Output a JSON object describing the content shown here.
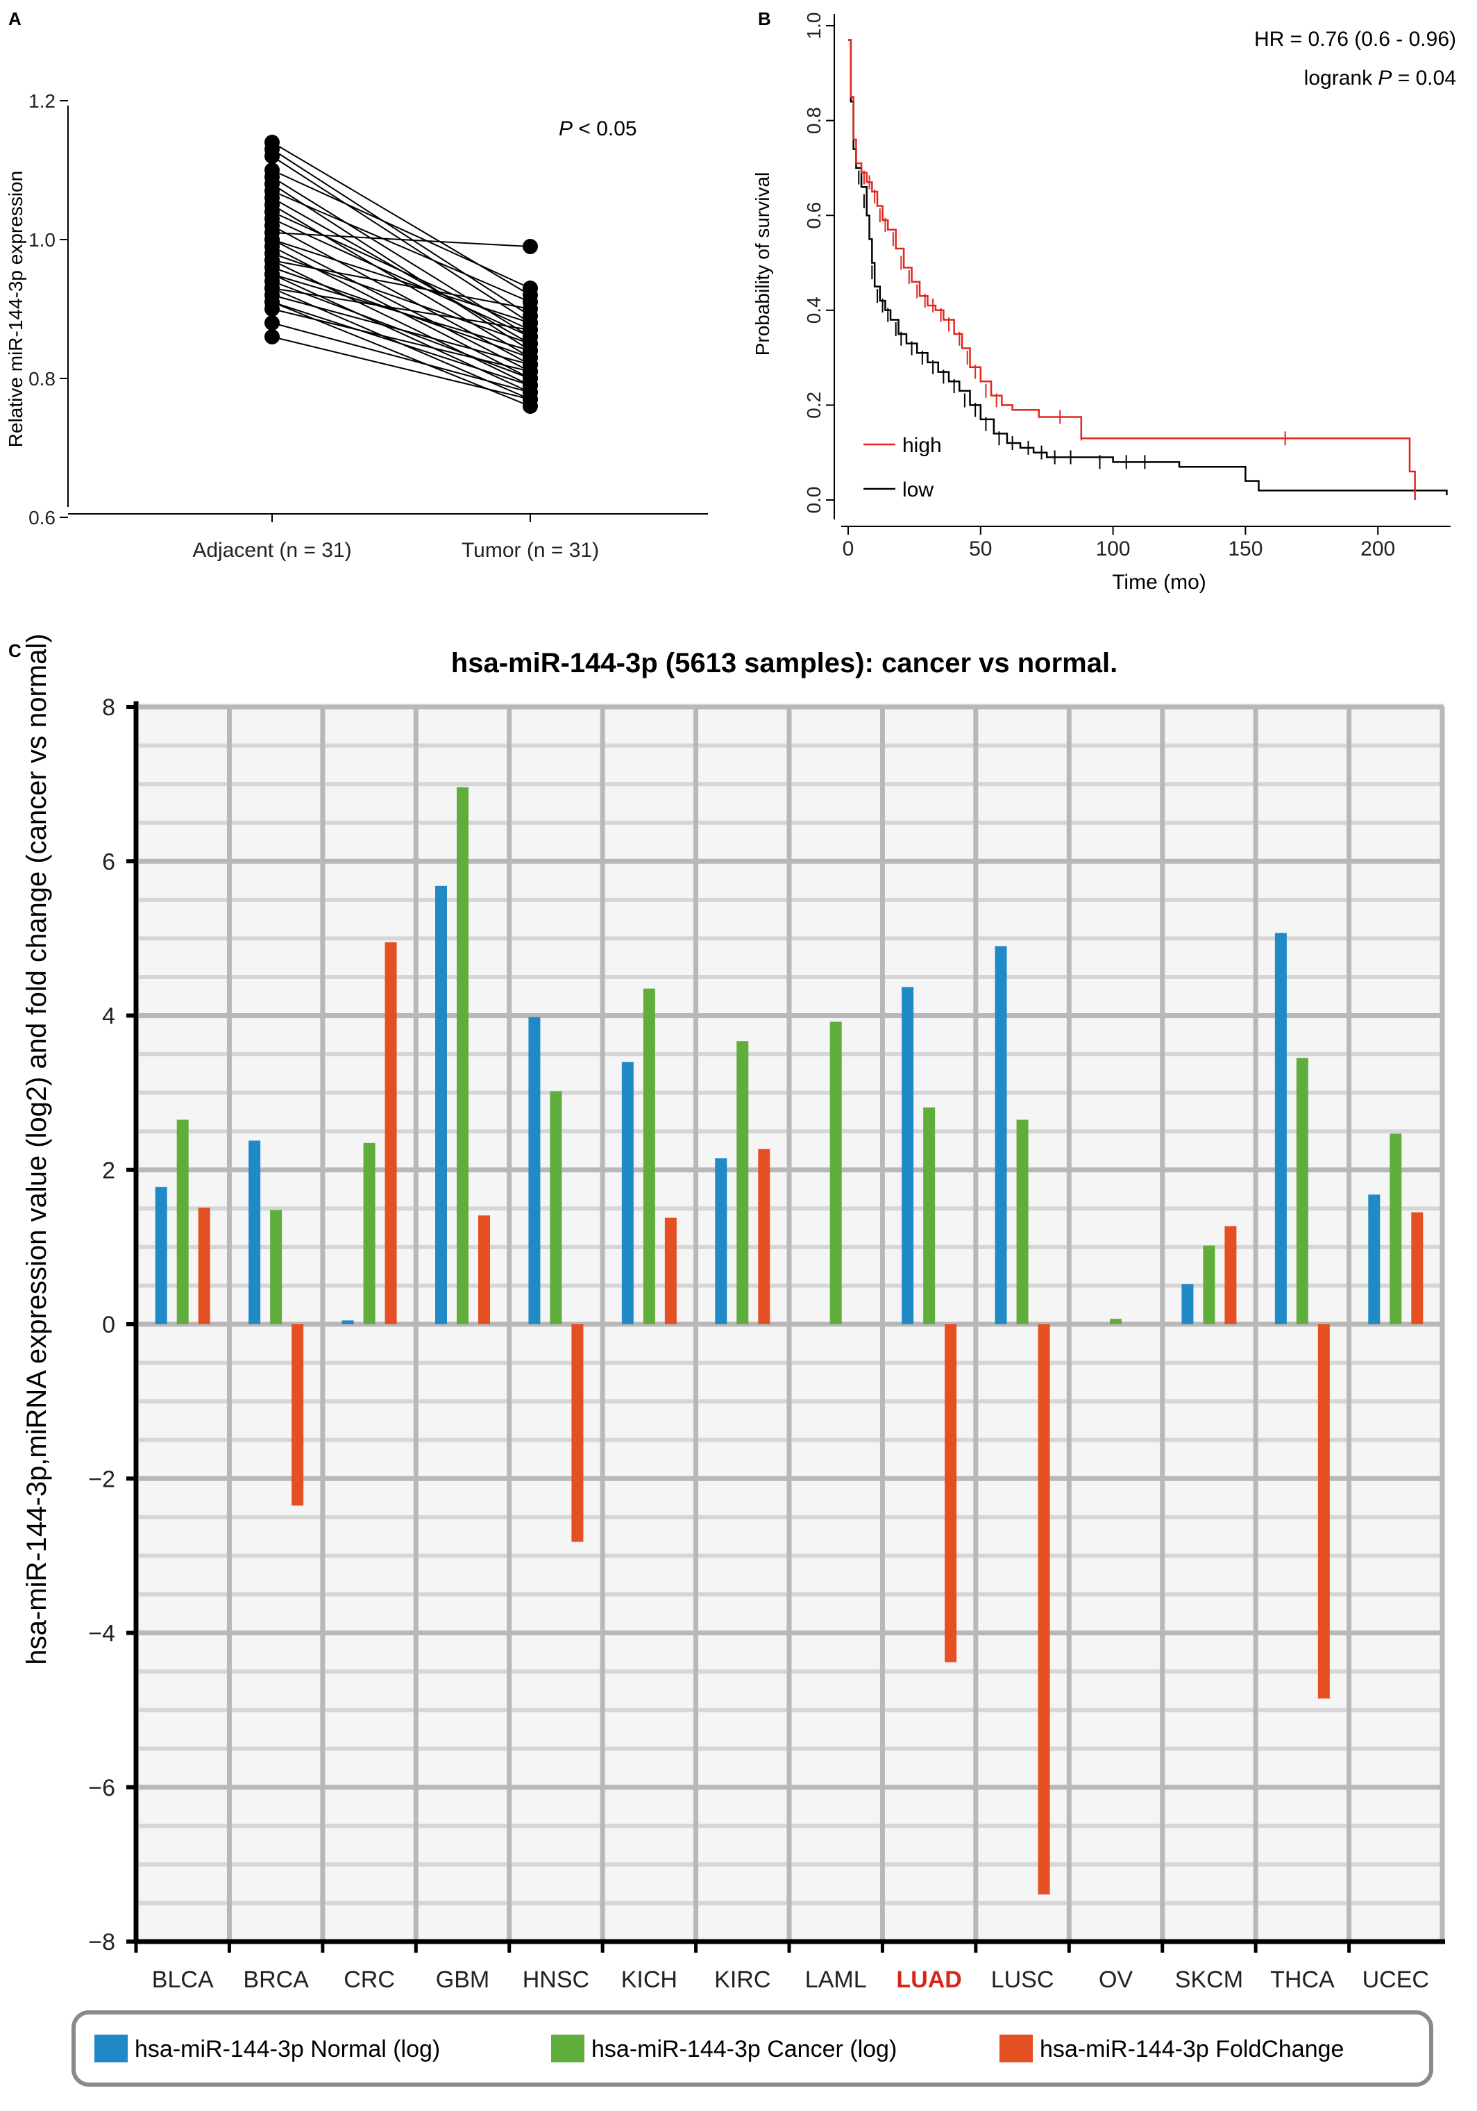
{
  "panel_labels": {
    "a": "A",
    "b": "B",
    "c": "C"
  },
  "colors": {
    "normal": "#1f8ac5",
    "cancer": "#5fae3b",
    "foldchange": "#e55022",
    "high": "#e2261c",
    "low": "#000000",
    "highlight_category": "#d9261c"
  },
  "chart_data": [
    {
      "type": "paired-dot",
      "ylabel": "Relative miR-144-3p expression",
      "ylim": [
        0.6,
        1.2
      ],
      "yticks": [
        "0.6",
        "0.8",
        "1.0",
        "1.2"
      ],
      "categories": [
        "Adjacent (n = 31)",
        "Tumor (n = 31)"
      ],
      "annotation": {
        "italic": "P",
        "text": " < 0.05"
      },
      "pairs": [
        [
          1.14,
          0.92
        ],
        [
          1.13,
          0.89
        ],
        [
          1.12,
          0.88
        ],
        [
          1.1,
          0.93
        ],
        [
          1.09,
          0.86
        ],
        [
          1.08,
          0.84
        ],
        [
          1.07,
          0.91
        ],
        [
          1.06,
          0.85
        ],
        [
          1.05,
          0.83
        ],
        [
          1.04,
          0.87
        ],
        [
          1.03,
          0.86
        ],
        [
          1.02,
          0.82
        ],
        [
          1.01,
          0.99
        ],
        [
          1.0,
          0.88
        ],
        [
          1.0,
          0.81
        ],
        [
          0.99,
          0.8
        ],
        [
          0.98,
          0.85
        ],
        [
          0.97,
          0.9
        ],
        [
          0.97,
          0.79
        ],
        [
          0.96,
          0.83
        ],
        [
          0.95,
          0.78
        ],
        [
          0.95,
          0.84
        ],
        [
          0.94,
          0.8
        ],
        [
          0.93,
          0.87
        ],
        [
          0.93,
          0.77
        ],
        [
          0.92,
          0.82
        ],
        [
          0.91,
          0.79
        ],
        [
          0.91,
          0.76
        ],
        [
          0.9,
          0.81
        ],
        [
          0.88,
          0.78
        ],
        [
          0.86,
          0.77
        ]
      ]
    },
    {
      "type": "line",
      "subtype": "kaplan-meier",
      "xlabel": "Time (mo)",
      "ylabel": "Probability of survival",
      "xlim": [
        0,
        230
      ],
      "ylim": [
        0,
        1.0
      ],
      "xticks": [
        "0",
        "50",
        "100",
        "150",
        "200"
      ],
      "yticks": [
        "0.0",
        "0.2",
        "0.4",
        "0.6",
        "0.8",
        "1.0"
      ],
      "annotations": [
        {
          "text": "HR = 0.76 (0.6 - 0.96)"
        },
        {
          "prefix": "logrank ",
          "italic": "P",
          "suffix": " = 0.04"
        }
      ],
      "legend": {
        "position": "bottom-left",
        "labels": [
          "high",
          "low"
        ]
      },
      "series": [
        {
          "name": "high",
          "color": "#e2261c",
          "points": [
            [
              0,
              0.97
            ],
            [
              1,
              0.85
            ],
            [
              2,
              0.76
            ],
            [
              3,
              0.71
            ],
            [
              5,
              0.69
            ],
            [
              7,
              0.67
            ],
            [
              9,
              0.65
            ],
            [
              11,
              0.62
            ],
            [
              13,
              0.59
            ],
            [
              15,
              0.57
            ],
            [
              18,
              0.53
            ],
            [
              21,
              0.49
            ],
            [
              24,
              0.46
            ],
            [
              27,
              0.43
            ],
            [
              30,
              0.41
            ],
            [
              33,
              0.4
            ],
            [
              36,
              0.38
            ],
            [
              40,
              0.35
            ],
            [
              43,
              0.32
            ],
            [
              46,
              0.28
            ],
            [
              50,
              0.25
            ],
            [
              54,
              0.22
            ],
            [
              58,
              0.2
            ],
            [
              62,
              0.19
            ],
            [
              70,
              0.19
            ],
            [
              72,
              0.175
            ],
            [
              80,
              0.175
            ],
            [
              82,
              0.175
            ],
            [
              88,
              0.13
            ],
            [
              212,
              0.13
            ],
            [
              212,
              0.06
            ],
            [
              214,
              0.06
            ],
            [
              214,
              0.0
            ]
          ],
          "censored": [
            [
              6,
              0.68
            ],
            [
              8,
              0.67
            ],
            [
              10,
              0.64
            ],
            [
              12,
              0.6
            ],
            [
              14,
              0.58
            ],
            [
              17,
              0.55
            ],
            [
              20,
              0.5
            ],
            [
              23,
              0.47
            ],
            [
              26,
              0.44
            ],
            [
              29,
              0.42
            ],
            [
              32,
              0.41
            ],
            [
              35,
              0.39
            ],
            [
              38,
              0.37
            ],
            [
              42,
              0.34
            ],
            [
              45,
              0.3
            ],
            [
              48,
              0.27
            ],
            [
              52,
              0.23
            ],
            [
              56,
              0.21
            ],
            [
              80,
              0.175
            ],
            [
              88,
              0.14
            ],
            [
              165,
              0.13
            ]
          ]
        },
        {
          "name": "low",
          "color": "#000000",
          "points": [
            [
              0,
              0.97
            ],
            [
              1,
              0.84
            ],
            [
              2,
              0.74
            ],
            [
              3,
              0.7
            ],
            [
              5,
              0.66
            ],
            [
              7,
              0.6
            ],
            [
              8,
              0.55
            ],
            [
              9,
              0.5
            ],
            [
              10,
              0.45
            ],
            [
              12,
              0.42
            ],
            [
              14,
              0.4
            ],
            [
              16,
              0.38
            ],
            [
              19,
              0.35
            ],
            [
              22,
              0.33
            ],
            [
              26,
              0.31
            ],
            [
              30,
              0.29
            ],
            [
              34,
              0.27
            ],
            [
              38,
              0.25
            ],
            [
              42,
              0.23
            ],
            [
              46,
              0.2
            ],
            [
              50,
              0.17
            ],
            [
              55,
              0.14
            ],
            [
              60,
              0.12
            ],
            [
              65,
              0.11
            ],
            [
              70,
              0.1
            ],
            [
              75,
              0.09
            ],
            [
              90,
              0.09
            ],
            [
              100,
              0.08
            ],
            [
              125,
              0.07
            ],
            [
              150,
              0.04
            ],
            [
              155,
              0.02
            ],
            [
              226,
              0.02
            ],
            [
              226,
              0.01
            ]
          ],
          "censored": [
            [
              4,
              0.68
            ],
            [
              6,
              0.63
            ],
            [
              9,
              0.48
            ],
            [
              11,
              0.43
            ],
            [
              13,
              0.41
            ],
            [
              15,
              0.39
            ],
            [
              18,
              0.36
            ],
            [
              20,
              0.34
            ],
            [
              24,
              0.32
            ],
            [
              28,
              0.3
            ],
            [
              32,
              0.28
            ],
            [
              36,
              0.26
            ],
            [
              40,
              0.24
            ],
            [
              44,
              0.21
            ],
            [
              48,
              0.19
            ],
            [
              52,
              0.16
            ],
            [
              57,
              0.13
            ],
            [
              62,
              0.12
            ],
            [
              68,
              0.11
            ],
            [
              73,
              0.1
            ],
            [
              78,
              0.09
            ],
            [
              84,
              0.09
            ],
            [
              95,
              0.08
            ],
            [
              105,
              0.08
            ],
            [
              112,
              0.08
            ]
          ]
        }
      ]
    },
    {
      "type": "bar",
      "title": "hsa-miR-144-3p (5613 samples): cancer vs normal.",
      "ylabel": "hsa-miR-144-3p,miRNA expression value (log2) and fold change (cancer vs normal)",
      "ylim": [
        -8,
        8
      ],
      "yticks": [
        "−8",
        "−6",
        "−4",
        "−2",
        "0",
        "2",
        "4",
        "6",
        "8"
      ],
      "grid": true,
      "legend_position": "bottom",
      "highlight_category": "LUAD",
      "categories": [
        "BLCA",
        "BRCA",
        "CRC",
        "GBM",
        "HNSC",
        "KICH",
        "KIRC",
        "LAML",
        "LUAD",
        "LUSC",
        "OV",
        "SKCM",
        "THCA",
        "UCEC"
      ],
      "series": [
        {
          "name": "hsa-miR-144-3p Normal (log)",
          "color": "#1f8ac5",
          "values": [
            1.78,
            2.38,
            0.05,
            5.68,
            3.98,
            3.4,
            2.15,
            null,
            4.37,
            4.9,
            null,
            0.52,
            5.07,
            1.68
          ]
        },
        {
          "name": "hsa-miR-144-3p Cancer (log)",
          "color": "#5fae3b",
          "values": [
            2.65,
            1.48,
            2.35,
            6.96,
            3.02,
            4.35,
            3.67,
            3.92,
            2.81,
            2.65,
            0.07,
            1.02,
            3.45,
            2.47
          ]
        },
        {
          "name": "hsa-miR-144-3p FoldChange",
          "color": "#e55022",
          "values": [
            1.51,
            -2.35,
            4.95,
            1.41,
            -2.82,
            1.38,
            2.27,
            null,
            -4.38,
            -7.39,
            null,
            1.27,
            -4.85,
            1.45
          ]
        }
      ]
    }
  ]
}
